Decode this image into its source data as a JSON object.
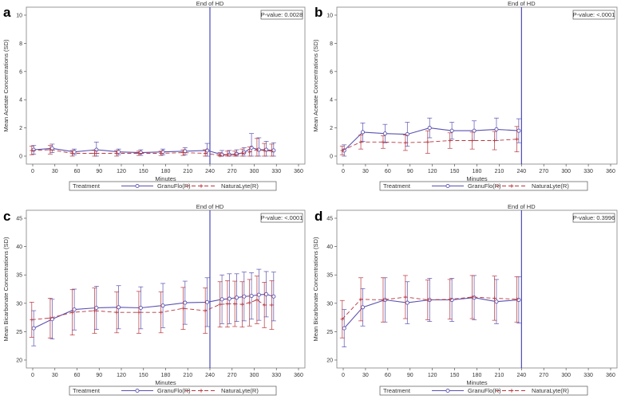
{
  "colors": {
    "granu": "#5a52b0",
    "natura": "#b8363e",
    "vline": "#3b3bb5",
    "frame": "#808080"
  },
  "legend_title": "Treatment",
  "vline_label": "End of HD",
  "chart_data": [
    {
      "panel": "a",
      "type": "line",
      "ylabel": "Mean Acetate Concentrations (SD)",
      "xlabel": "Minutes",
      "pvalue": "P-value: 0.0028",
      "xlim": [
        0,
        360
      ],
      "ylim": [
        0,
        10
      ],
      "xticks": [
        "0",
        "30",
        "60",
        "90",
        "120",
        "150",
        "180",
        "210",
        "240",
        "270",
        "300",
        "330",
        "360"
      ],
      "yticks": [
        "0",
        "2",
        "4",
        "6",
        "8",
        "10"
      ],
      "vline_x": 240,
      "series": [
        {
          "name": "GranuFlo(R)",
          "x": [
            0,
            25,
            55,
            85,
            115,
            145,
            175,
            205,
            235,
            255,
            265,
            275,
            285,
            295,
            305,
            315,
            325
          ],
          "y": [
            0.45,
            0.55,
            0.3,
            0.45,
            0.3,
            0.25,
            0.3,
            0.35,
            0.4,
            0.1,
            0.1,
            0.15,
            0.25,
            0.6,
            0.45,
            0.45,
            0.4
          ],
          "sd": [
            0.3,
            0.3,
            0.2,
            0.55,
            0.2,
            0.2,
            0.2,
            0.25,
            0.5,
            0.3,
            0.3,
            0.3,
            0.35,
            1.0,
            0.85,
            0.6,
            0.55
          ]
        },
        {
          "name": "NaturaLyte(R)",
          "x": [
            0,
            25,
            55,
            85,
            115,
            145,
            175,
            205,
            235,
            255,
            265,
            275,
            285,
            295,
            305,
            315,
            325
          ],
          "y": [
            0.4,
            0.45,
            0.2,
            0.2,
            0.2,
            0.2,
            0.2,
            0.25,
            0.2,
            0.05,
            0.1,
            0.1,
            0.2,
            0.3,
            0.45,
            0.4,
            0.35
          ],
          "sd": [
            0.3,
            0.3,
            0.2,
            0.2,
            0.2,
            0.15,
            0.15,
            0.2,
            0.25,
            0.2,
            0.25,
            0.25,
            0.3,
            0.35,
            0.8,
            0.5,
            0.5
          ]
        }
      ]
    },
    {
      "panel": "b",
      "type": "line",
      "ylabel": "Mean Acetate Concentrations (SD)",
      "xlabel": "Minutes",
      "pvalue": "P-value: <.0001",
      "xlim": [
        0,
        360
      ],
      "ylim": [
        0,
        10
      ],
      "xticks": [
        "0",
        "30",
        "60",
        "90",
        "120",
        "150",
        "180",
        "210",
        "240",
        "270",
        "300",
        "330",
        "360"
      ],
      "yticks": [
        "0",
        "2",
        "4",
        "6",
        "8",
        "10"
      ],
      "vline_x": 240,
      "series": [
        {
          "name": "GranuFlo(R)",
          "x": [
            0,
            25,
            55,
            85,
            115,
            145,
            175,
            205,
            235
          ],
          "y": [
            0.4,
            1.7,
            1.6,
            1.55,
            2.0,
            1.8,
            1.8,
            1.9,
            1.8
          ],
          "sd": [
            0.4,
            0.65,
            0.65,
            0.85,
            0.7,
            0.6,
            0.7,
            0.8,
            0.85
          ]
        },
        {
          "name": "NaturaLyte(R)",
          "x": [
            0,
            25,
            55,
            85,
            115,
            145,
            175,
            205,
            235
          ],
          "y": [
            0.4,
            1.0,
            1.0,
            0.95,
            1.0,
            1.1,
            1.1,
            1.1,
            1.2
          ],
          "sd": [
            0.3,
            0.5,
            0.45,
            0.55,
            0.8,
            0.55,
            0.6,
            0.65,
            0.9
          ]
        }
      ]
    },
    {
      "panel": "c",
      "type": "line",
      "ylabel": "Mean Bicarbonate Concentrations (SD)",
      "xlabel": "Minutes",
      "pvalue": "P-value: <.0001",
      "xlim": [
        0,
        360
      ],
      "ylim": [
        20,
        45
      ],
      "xticks": [
        "0",
        "30",
        "60",
        "90",
        "120",
        "150",
        "180",
        "210",
        "240",
        "270",
        "300",
        "330",
        "360"
      ],
      "yticks": [
        "20",
        "25",
        "30",
        "35",
        "40",
        "45"
      ],
      "vline_x": 240,
      "series": [
        {
          "name": "GranuFlo(R)",
          "x": [
            0,
            25,
            55,
            85,
            115,
            145,
            175,
            205,
            235,
            255,
            265,
            275,
            285,
            295,
            305,
            315,
            325
          ],
          "y": [
            25.6,
            27.2,
            28.9,
            29.2,
            29.3,
            29.2,
            29.6,
            30.1,
            30.2,
            30.7,
            30.8,
            31.0,
            31.2,
            31.3,
            31.5,
            31.6,
            31.2
          ],
          "sd": [
            3.1,
            3.5,
            3.6,
            3.8,
            3.8,
            3.7,
            3.9,
            3.8,
            4.3,
            4.3,
            4.4,
            4.2,
            4.3,
            4.1,
            4.5,
            4.0,
            4.3
          ]
        },
        {
          "name": "NaturaLyte(R)",
          "x": [
            0,
            25,
            55,
            85,
            115,
            145,
            175,
            205,
            235,
            255,
            265,
            275,
            285,
            295,
            305,
            315,
            325
          ],
          "y": [
            27.1,
            27.4,
            28.4,
            28.7,
            28.4,
            28.4,
            28.4,
            29.1,
            28.7,
            29.8,
            29.9,
            29.9,
            29.8,
            30.1,
            30.6,
            29.7,
            29.7
          ],
          "sd": [
            3.1,
            3.5,
            4.0,
            4.0,
            3.6,
            3.7,
            3.6,
            3.7,
            4.0,
            4.0,
            4.1,
            4.0,
            4.0,
            4.1,
            4.2,
            4.0,
            4.3
          ]
        }
      ]
    },
    {
      "panel": "d",
      "type": "line",
      "ylabel": "Mean Bicarbonate Concentrations (SD)",
      "xlabel": "Minutes",
      "pvalue": "P-value: 0.3996",
      "xlim": [
        0,
        360
      ],
      "ylim": [
        20,
        45
      ],
      "xticks": [
        "0",
        "30",
        "60",
        "90",
        "120",
        "150",
        "180",
        "210",
        "240",
        "270",
        "300",
        "330",
        "360"
      ],
      "yticks": [
        "20",
        "25",
        "30",
        "35",
        "40",
        "45"
      ],
      "vline_x": 240,
      "series": [
        {
          "name": "GranuFlo(R)",
          "x": [
            0,
            25,
            55,
            85,
            115,
            145,
            175,
            205,
            235
          ],
          "y": [
            25.6,
            29.3,
            30.6,
            30.1,
            30.6,
            30.6,
            31.0,
            30.3,
            30.6
          ],
          "sd": [
            3.3,
            3.3,
            3.9,
            3.7,
            3.8,
            3.8,
            3.9,
            3.9,
            4.1
          ]
        },
        {
          "name": "NaturaLyte(R)",
          "x": [
            0,
            25,
            55,
            85,
            115,
            145,
            175,
            205,
            235
          ],
          "y": [
            27.2,
            30.7,
            30.6,
            31.1,
            30.6,
            30.7,
            31.1,
            30.9,
            30.7
          ],
          "sd": [
            3.3,
            3.8,
            3.9,
            3.8,
            3.5,
            3.5,
            3.8,
            3.9,
            4.0
          ]
        }
      ]
    }
  ]
}
